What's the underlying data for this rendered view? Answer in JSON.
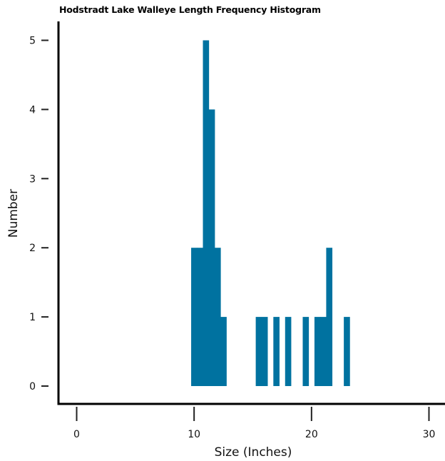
{
  "chart_data": {
    "type": "bar",
    "title": "Hodstradt Lake Walleye Length Frequency Histogram",
    "xlabel": "Size (Inches)",
    "ylabel": "Number",
    "xlim": [
      -1.5,
      31
    ],
    "ylim": [
      -0.25,
      5.3
    ],
    "xticks": [
      0,
      10,
      20,
      30
    ],
    "yticks": [
      0,
      1,
      2,
      3,
      4,
      5
    ],
    "bin_width": 0.5,
    "color": "#0072a0",
    "bins": [
      {
        "start": 9.75,
        "value": 2
      },
      {
        "start": 10.25,
        "value": 2
      },
      {
        "start": 10.75,
        "value": 5
      },
      {
        "start": 11.25,
        "value": 4
      },
      {
        "start": 11.75,
        "value": 2
      },
      {
        "start": 12.25,
        "value": 1
      },
      {
        "start": 15.25,
        "value": 1
      },
      {
        "start": 15.75,
        "value": 1
      },
      {
        "start": 16.75,
        "value": 1
      },
      {
        "start": 17.75,
        "value": 1
      },
      {
        "start": 19.25,
        "value": 1
      },
      {
        "start": 20.25,
        "value": 1
      },
      {
        "start": 20.75,
        "value": 1
      },
      {
        "start": 21.25,
        "value": 2
      },
      {
        "start": 22.75,
        "value": 1
      }
    ]
  }
}
